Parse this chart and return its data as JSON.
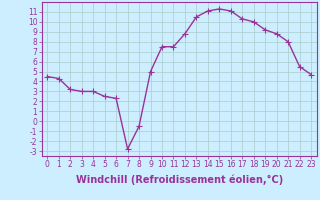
{
  "x": [
    0,
    1,
    2,
    3,
    4,
    5,
    6,
    7,
    8,
    9,
    10,
    11,
    12,
    13,
    14,
    15,
    16,
    17,
    18,
    19,
    20,
    21,
    22,
    23
  ],
  "y": [
    4.5,
    4.3,
    3.2,
    3.0,
    3.0,
    2.5,
    2.3,
    -2.8,
    -0.5,
    5.0,
    7.5,
    7.5,
    8.8,
    10.5,
    11.1,
    11.3,
    11.1,
    10.3,
    10.0,
    9.2,
    8.8,
    8.0,
    5.5,
    4.7
  ],
  "line_color": "#993399",
  "marker": "D",
  "markersize": 2.0,
  "linewidth": 1.0,
  "bg_color": "#cceeff",
  "grid_color": "#aacccc",
  "xlabel": "Windchill (Refroidissement éolien,°C)",
  "xlabel_fontsize": 7,
  "xtick_labels": [
    "0",
    "1",
    "2",
    "3",
    "4",
    "5",
    "6",
    "7",
    "8",
    "9",
    "10",
    "11",
    "12",
    "13",
    "14",
    "15",
    "16",
    "17",
    "18",
    "19",
    "20",
    "21",
    "22",
    "23"
  ],
  "ytick_labels": [
    "11",
    "10",
    "9",
    "8",
    "7",
    "6",
    "5",
    "4",
    "3",
    "2",
    "1",
    "0",
    "-1",
    "-2",
    "-3"
  ],
  "ylim": [
    -3.5,
    12.0
  ],
  "xlim": [
    -0.5,
    23.5
  ],
  "yticks": [
    11,
    10,
    9,
    8,
    7,
    6,
    5,
    4,
    3,
    2,
    1,
    0,
    -1,
    -2,
    -3
  ],
  "tick_color": "#993399",
  "tick_fontsize": 5.5,
  "axis_color": "#993399"
}
